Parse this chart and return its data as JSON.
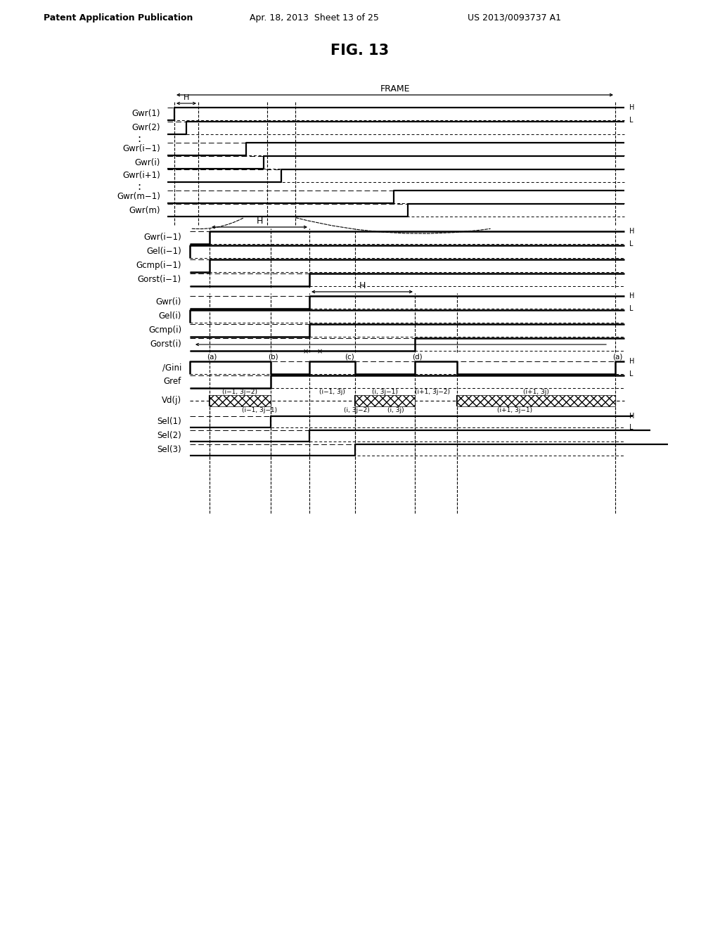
{
  "title": "FIG. 13",
  "header_left": "Patent Application Publication",
  "header_mid": "Apr. 18, 2013  Sheet 13 of 25",
  "header_right": "US 2013/0093737 A1",
  "bg_color": "#ffffff"
}
